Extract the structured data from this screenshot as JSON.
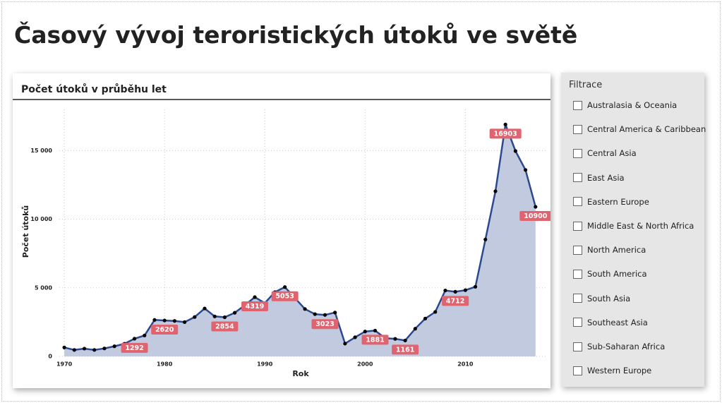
{
  "header": {
    "title": "Časový vývoj teroristických útoků ve světě"
  },
  "chart_data": {
    "type": "area",
    "title": "Počet útoků v průběhu let",
    "x_label": "Rok",
    "y_label": "Počet útoků",
    "x": [
      1970,
      1971,
      1972,
      1973,
      1974,
      1975,
      1976,
      1977,
      1978,
      1979,
      1980,
      1981,
      1982,
      1983,
      1984,
      1985,
      1986,
      1987,
      1988,
      1989,
      1990,
      1991,
      1992,
      1994,
      1995,
      1996,
      1997,
      1998,
      1999,
      2000,
      2001,
      2002,
      2003,
      2004,
      2005,
      2006,
      2007,
      2008,
      2009,
      2010,
      2011,
      2012,
      2013,
      2014,
      2015,
      2016,
      2017
    ],
    "values": [
      651,
      471,
      568,
      473,
      581,
      740,
      923,
      1292,
      1526,
      2660,
      2620,
      2586,
      2500,
      2870,
      3495,
      2915,
      2854,
      3183,
      3721,
      4319,
      3887,
      4683,
      5053,
      3456,
      3081,
      3023,
      3197,
      934,
      1395,
      1814,
      1881,
      1333,
      1278,
      1161,
      2017,
      2758,
      3242,
      4805,
      4712,
      4826,
      5076,
      8522,
      12036,
      16903,
      14965,
      13587,
      10900
    ],
    "value_labels": [
      null,
      null,
      null,
      null,
      null,
      null,
      null,
      "1292",
      null,
      null,
      "2620",
      null,
      null,
      null,
      null,
      null,
      "2854",
      null,
      null,
      "4319",
      null,
      null,
      "5053",
      null,
      null,
      "3023",
      null,
      null,
      null,
      null,
      "1881",
      null,
      null,
      "1161",
      null,
      null,
      null,
      null,
      "4712",
      null,
      null,
      null,
      null,
      "16903",
      null,
      null,
      "10900"
    ],
    "color": "#2b4a8e",
    "fill_color": "#c1cadf",
    "label_color": "#e0646f",
    "xlim": [
      1969.5,
      2018
    ],
    "xticks": [
      1970,
      1980,
      1990,
      2000,
      2010
    ],
    "ylim": [
      0,
      18000
    ],
    "yticks": [
      0,
      {
        "value": 5000,
        "label": "5 000"
      },
      {
        "value": 10000,
        "label": "10 000"
      },
      {
        "value": 15000,
        "label": "15 000"
      }
    ],
    "grid": true
  },
  "slicer": {
    "title": "Filtrace",
    "items": [
      "Australasia & Oceania",
      "Central America & Caribbean",
      "Central Asia",
      "East Asia",
      "Eastern Europe",
      "Middle East & North Africa",
      "North America",
      "South America",
      "South Asia",
      "Southeast Asia",
      "Sub-Saharan Africa",
      "Western Europe"
    ]
  }
}
